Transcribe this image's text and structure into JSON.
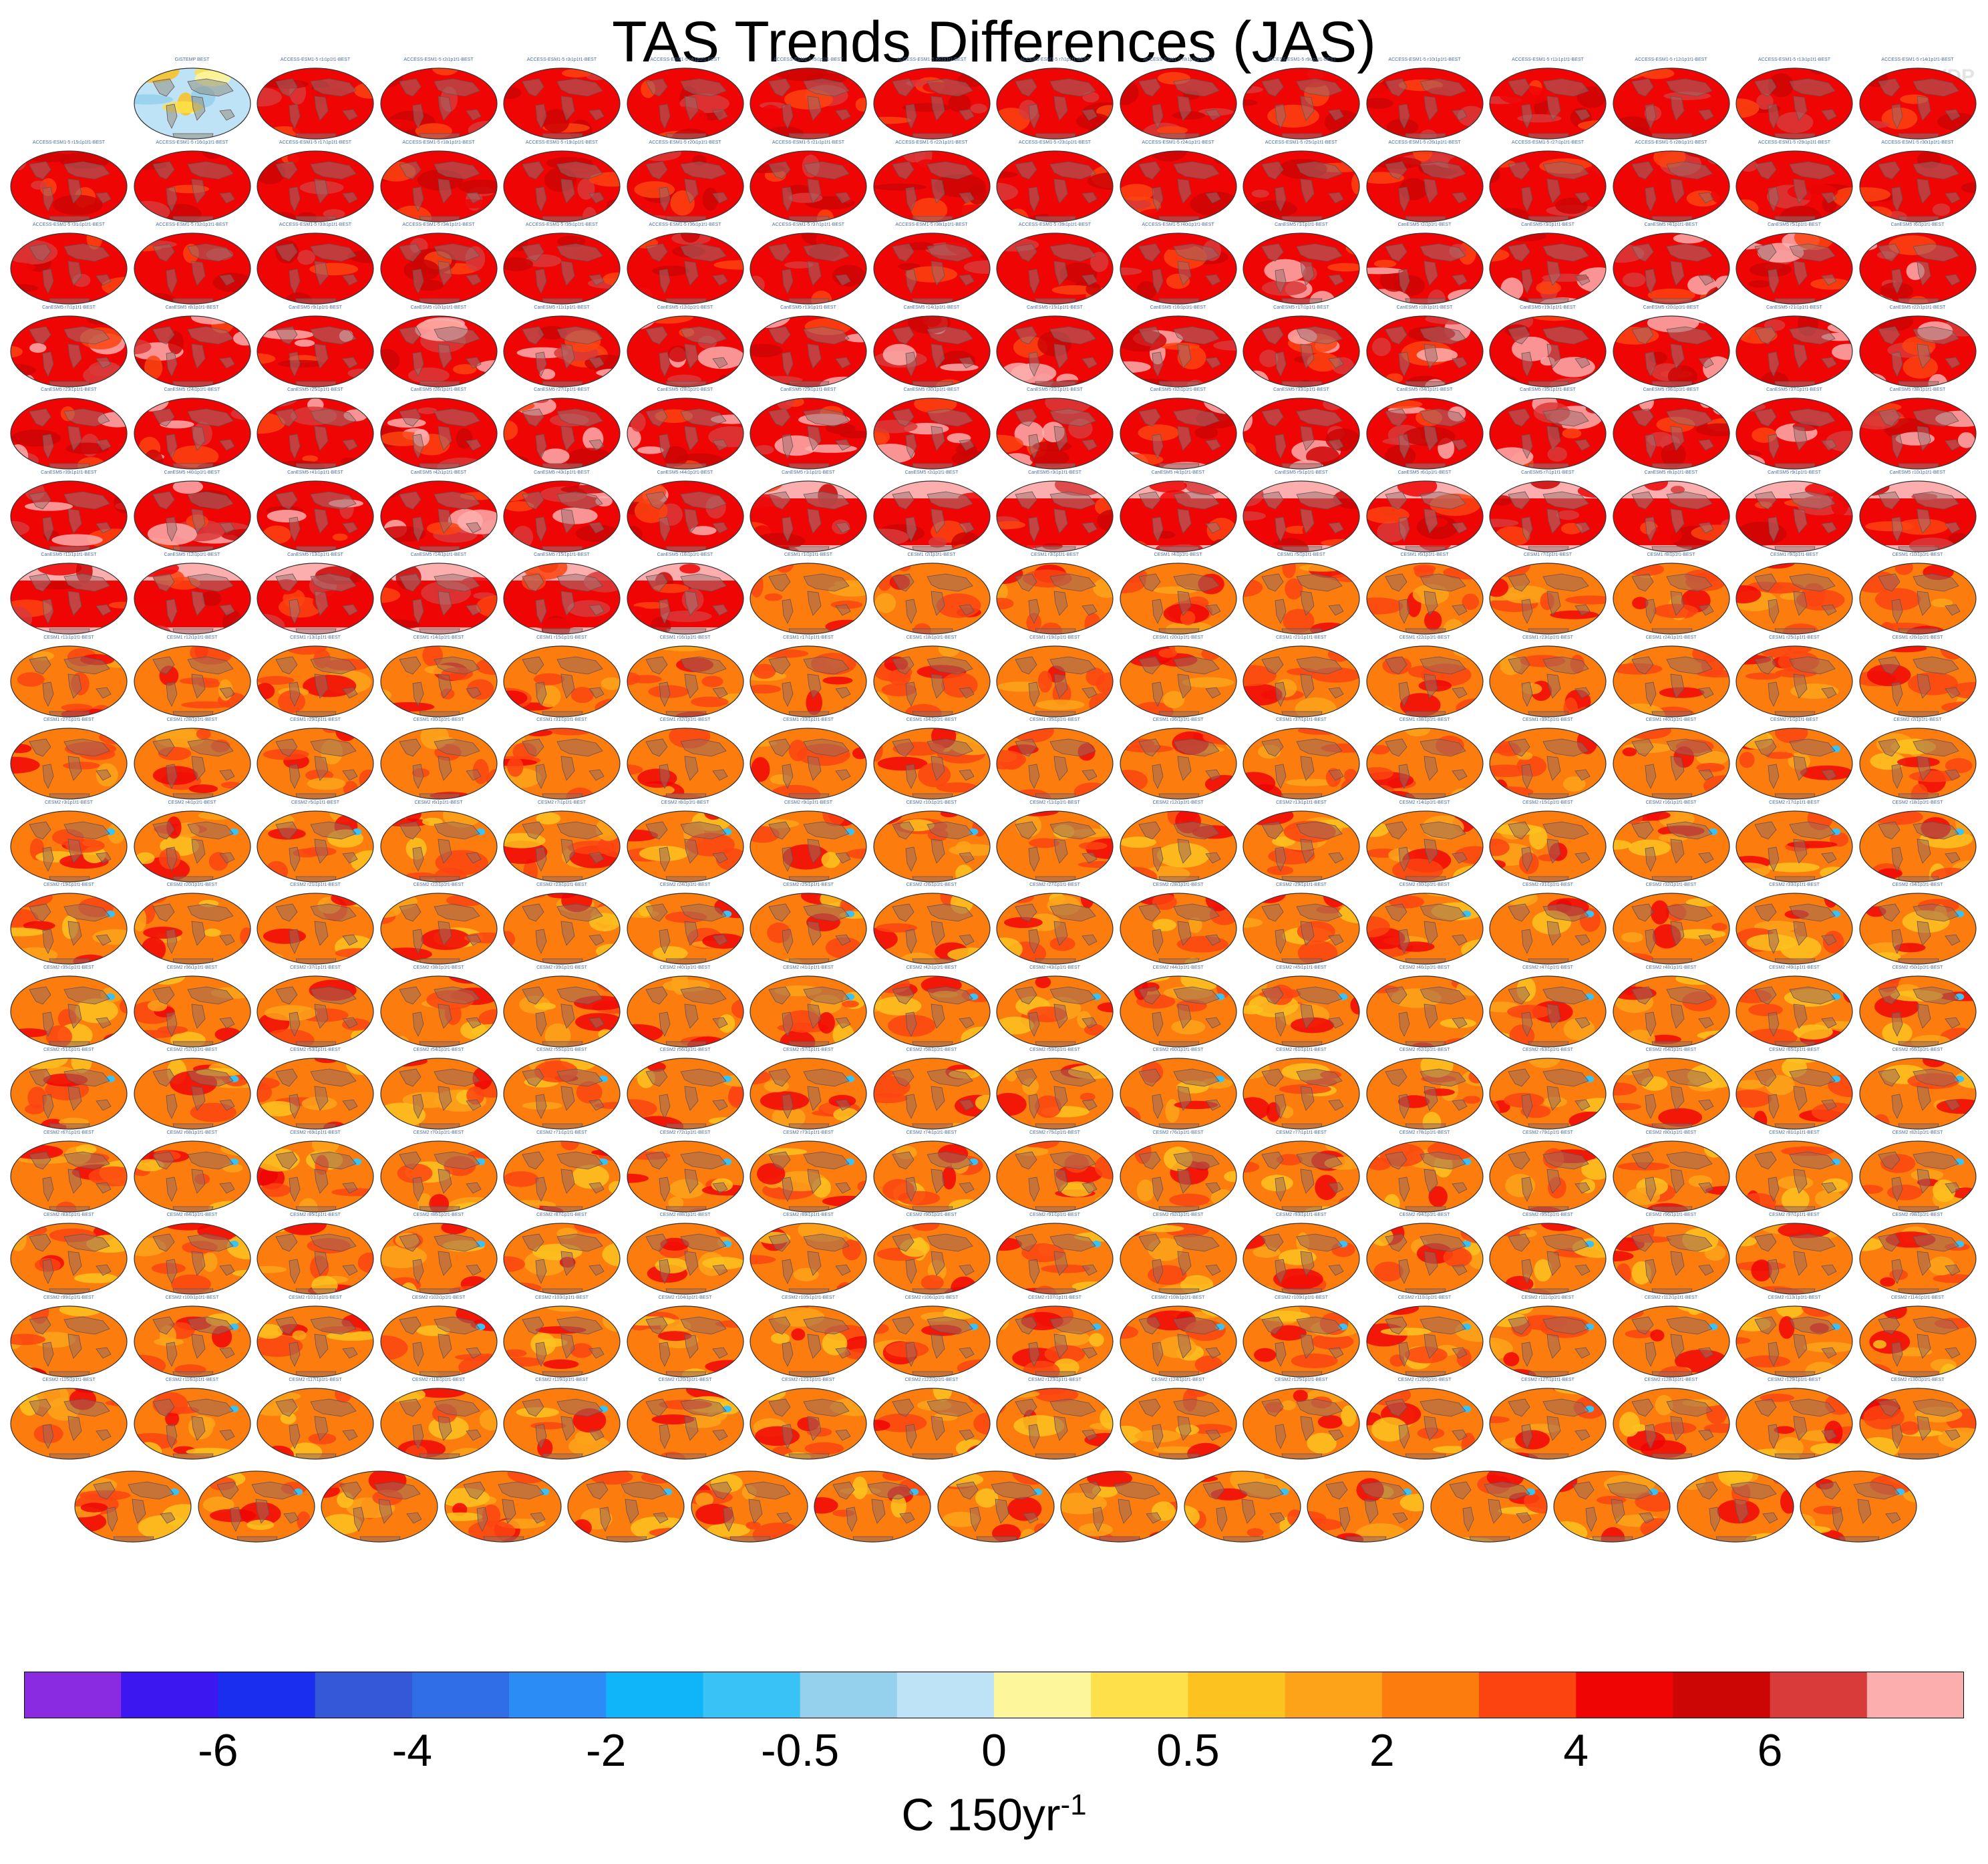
{
  "page": {
    "title": "TAS Trends Differences (JAS)",
    "watermark": "© CVDP"
  },
  "chart_data": {
    "type": "heatmap",
    "title": "TAS Trends Differences (JAS)",
    "description_units": "C 150yr-1",
    "units_base": "C 150yr",
    "units_exp": "-1",
    "grid": {
      "rows": 18,
      "columns": 16,
      "last_row_panels": 15
    },
    "reference_panel": "GISTEMP BEST",
    "panel_label_pattern": "{model} r{n}i1p1f1-BEST",
    "model_groups": [
      {
        "name": "ACCESS-ESM1-5",
        "panels": 40,
        "style": "red-darkred"
      },
      {
        "name": "CanESM5",
        "panels": 44,
        "style": "red-pink"
      },
      {
        "name": "CanESM5 (high-latitude warm)",
        "panels": 16,
        "style": "pink-red"
      },
      {
        "name": "CESM1",
        "panels": 40,
        "style": "orange-red"
      },
      {
        "name": "CESM2",
        "panels": 146,
        "style": "orange-red-blue"
      }
    ],
    "colorbar": {
      "levels": [
        "<-7",
        "-7",
        "-6",
        "-5",
        "-4",
        "-3",
        "-2",
        "-1",
        "-0.5",
        "-0.25",
        "0",
        "0.25",
        "0.5",
        "1",
        "2",
        "3",
        "4",
        "5",
        "6",
        "7"
      ],
      "tick_labels": [
        "-6",
        "-4",
        "-2",
        "-0.5",
        "0",
        "0.5",
        "2",
        "4",
        "6"
      ],
      "colors": [
        "#8a2be2",
        "#3c17f0",
        "#1a2ef0",
        "#3558d8",
        "#2f6ee6",
        "#2a8cf4",
        "#10b4f8",
        "#39c2f6",
        "#95d0ec",
        "#bee3f6",
        "#fef69b",
        "#fee14a",
        "#fcc21f",
        "#fca31a",
        "#fc7d0e",
        "#fc4410",
        "#f00505",
        "#cc0505",
        "#d93a3a",
        "#fcaeae"
      ]
    }
  }
}
